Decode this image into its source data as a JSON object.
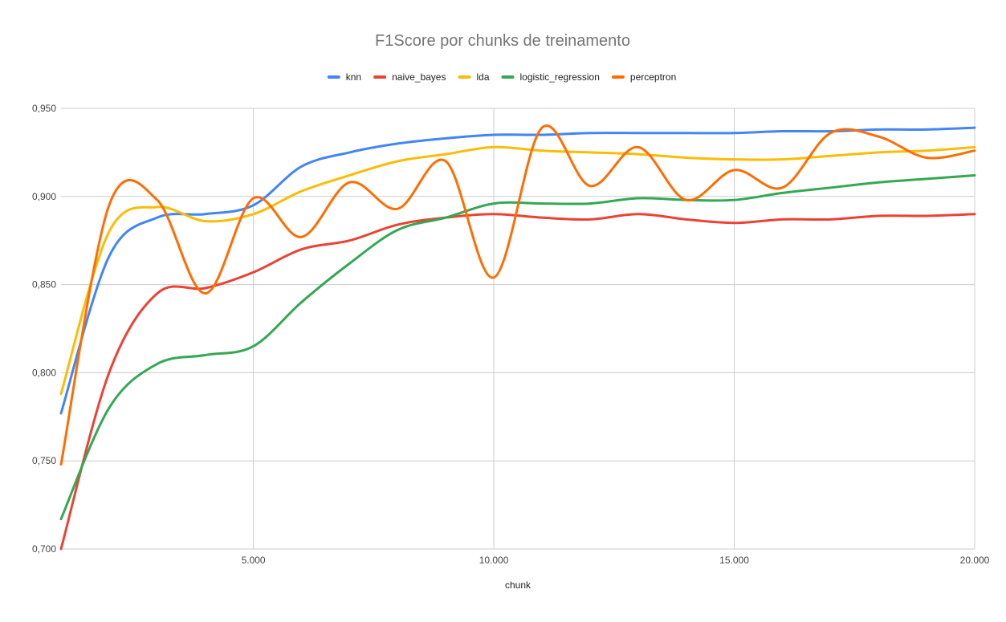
{
  "chart_data": {
    "type": "line",
    "title": "F1Score por chunks de treinamento",
    "xlabel": "chunk",
    "ylabel": "",
    "xlim": [
      1000,
      20000
    ],
    "ylim": [
      0.7,
      0.95
    ],
    "xticks": [
      5000,
      10000,
      15000,
      20000
    ],
    "xtick_labels": [
      "5.000",
      "10.000",
      "15.000",
      "20.000"
    ],
    "yticks": [
      0.7,
      0.75,
      0.8,
      0.85,
      0.9,
      0.95
    ],
    "ytick_labels": [
      "0,700",
      "0,750",
      "0,800",
      "0,850",
      "0,900",
      "0,950"
    ],
    "grid": true,
    "legend_position": "top",
    "x": [
      1000,
      2000,
      3000,
      4000,
      5000,
      6000,
      7000,
      8000,
      9000,
      10000,
      11000,
      12000,
      13000,
      14000,
      15000,
      16000,
      17000,
      18000,
      19000,
      20000
    ],
    "series": [
      {
        "name": "knn",
        "color": "#4285F4",
        "values": [
          0.777,
          0.866,
          0.888,
          0.89,
          0.895,
          0.917,
          0.925,
          0.93,
          0.933,
          0.935,
          0.935,
          0.936,
          0.936,
          0.936,
          0.936,
          0.937,
          0.937,
          0.938,
          0.938,
          0.939
        ]
      },
      {
        "name": "naive_bayes",
        "color": "#EA4335",
        "values": [
          0.7,
          0.8,
          0.845,
          0.848,
          0.857,
          0.87,
          0.875,
          0.884,
          0.888,
          0.89,
          0.888,
          0.887,
          0.89,
          0.887,
          0.885,
          0.887,
          0.887,
          0.889,
          0.889,
          0.89
        ]
      },
      {
        "name": "lda",
        "color": "#FBBC04",
        "values": [
          0.788,
          0.88,
          0.894,
          0.886,
          0.89,
          0.903,
          0.912,
          0.92,
          0.924,
          0.928,
          0.926,
          0.925,
          0.924,
          0.922,
          0.921,
          0.921,
          0.923,
          0.925,
          0.926,
          0.928
        ]
      },
      {
        "name": "logistic_regression",
        "color": "#34A853",
        "values": [
          0.717,
          0.78,
          0.805,
          0.81,
          0.815,
          0.84,
          0.862,
          0.881,
          0.888,
          0.896,
          0.896,
          0.896,
          0.899,
          0.898,
          0.898,
          0.902,
          0.905,
          0.908,
          0.91,
          0.912
        ]
      },
      {
        "name": "perceptron",
        "color": "#FF6D01",
        "values": [
          0.748,
          0.895,
          0.898,
          0.845,
          0.899,
          0.877,
          0.908,
          0.893,
          0.92,
          0.854,
          0.939,
          0.906,
          0.928,
          0.898,
          0.915,
          0.905,
          0.936,
          0.934,
          0.922,
          0.926
        ]
      }
    ]
  }
}
